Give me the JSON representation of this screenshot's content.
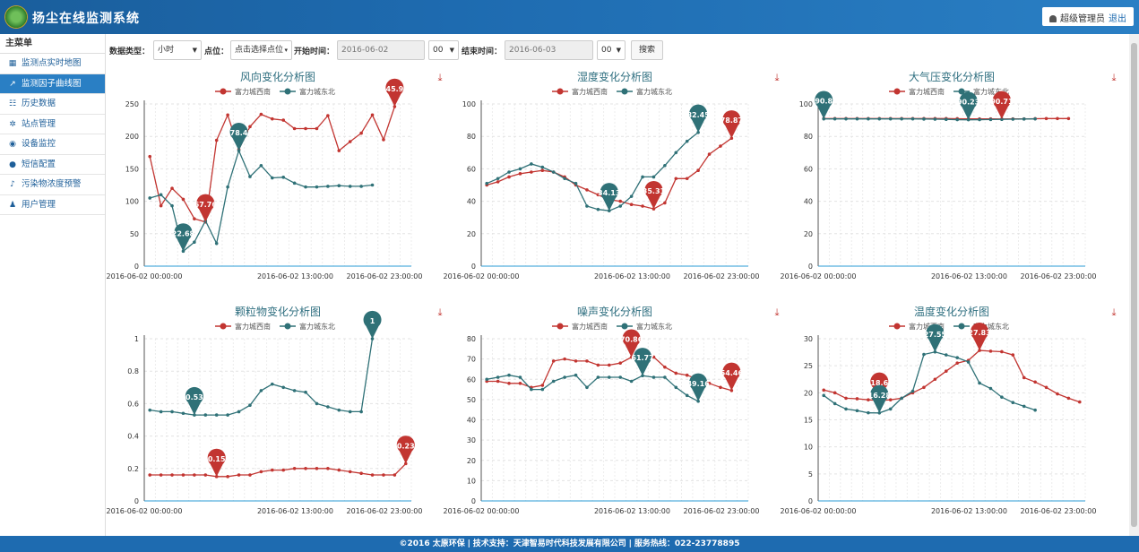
{
  "app": {
    "title": "扬尘在线监测系统"
  },
  "user": {
    "name": "超级管理员",
    "logout": "退出"
  },
  "sidebar": {
    "header": "主菜单",
    "items": [
      {
        "label": "监测点实时地图",
        "icon": "map-icon"
      },
      {
        "label": "监测因子曲线图",
        "icon": "line-chart-icon"
      },
      {
        "label": "历史数据",
        "icon": "table-icon"
      },
      {
        "label": "站点管理",
        "icon": "gear-icon"
      },
      {
        "label": "设备监控",
        "icon": "eye-icon"
      },
      {
        "label": "短信配置",
        "icon": "message-icon"
      },
      {
        "label": "污染物浓度预警",
        "icon": "bell-icon"
      },
      {
        "label": "用户管理",
        "icon": "user-icon"
      }
    ]
  },
  "toolbar": {
    "type_label": "数据类型：",
    "type_value": "小时",
    "point_label": "点位：",
    "point_value": "点击选择点位",
    "start_label": "开始时间：",
    "start_date": "2016-06-02",
    "start_hour": "00",
    "end_label": "结束时间：",
    "end_date": "2016-06-03",
    "end_hour": "00",
    "search": "搜索"
  },
  "footer": {
    "copyright": "©2016 太原环保",
    "sep1": "|",
    "support": "技术支持：",
    "company": "天津智易时代科技发展有限公司",
    "sep2": "|",
    "hotline": "服务热线：022-23778895"
  },
  "chart_data": [
    {
      "type": "line",
      "title": "风向变化分析图",
      "ylim": [
        0,
        250
      ],
      "yticks": [
        0,
        50,
        100,
        150,
        200,
        250
      ],
      "xticks": [
        "2016-06-02 00:00:00",
        "2016-06-02 13:00:00",
        "2016-06-02 23:00:00"
      ],
      "series": [
        {
          "name": "富力城西南",
          "color": "#c23531",
          "values": [
            169,
            93,
            120,
            103,
            73,
            68,
            194,
            233,
            180,
            215,
            234,
            227,
            225,
            212,
            212,
            212,
            232,
            178,
            192,
            205,
            233,
            195,
            246
          ],
          "markers": [
            {
              "index": 5,
              "label": "67.76"
            },
            {
              "index": 22,
              "label": "245.97"
            }
          ]
        },
        {
          "name": "富力城东北",
          "color": "#2f7177",
          "values": [
            105,
            110,
            93,
            23,
            37,
            70,
            35,
            122,
            178,
            138,
            155,
            136,
            137,
            128,
            122,
            122,
            123,
            124,
            123,
            123,
            125
          ],
          "markers": [
            {
              "index": 3,
              "label": "22.68"
            },
            {
              "index": 8,
              "label": "178.42"
            }
          ]
        }
      ]
    },
    {
      "type": "line",
      "title": "湿度变化分析图",
      "ylim": [
        0,
        100
      ],
      "yticks": [
        0,
        20,
        40,
        60,
        80,
        100
      ],
      "xticks": [
        "2016-06-02 00:00:00",
        "2016-06-02 13:00:00",
        "2016-06-02 23:00:00"
      ],
      "series": [
        {
          "name": "富力城西南",
          "color": "#c23531",
          "values": [
            50,
            52,
            55,
            57,
            58,
            59,
            58,
            55,
            50,
            47,
            44,
            41,
            40,
            38,
            37,
            35.3,
            39,
            54,
            54,
            59,
            69,
            74,
            78.87
          ],
          "markers": [
            {
              "index": 15,
              "label": "35.31"
            },
            {
              "index": 22,
              "label": "78.87"
            }
          ]
        },
        {
          "name": "富力城东北",
          "color": "#2f7177",
          "values": [
            51,
            54,
            58,
            60,
            63,
            61,
            58,
            54,
            51,
            37,
            35,
            34.13,
            37,
            43,
            55,
            55,
            62,
            70,
            77,
            82.45
          ],
          "markers": [
            {
              "index": 11,
              "label": "34.13"
            },
            {
              "index": 19,
              "label": "82.45"
            }
          ]
        }
      ]
    },
    {
      "type": "line",
      "title": "大气压变化分析图",
      "ylim": [
        0,
        100
      ],
      "yticks": [
        0,
        20,
        40,
        60,
        80,
        100
      ],
      "xticks": [
        "2016-06-02 00:00:00",
        "2016-06-02 13:00:00",
        "2016-06-02 23:00:00"
      ],
      "series": [
        {
          "name": "富力城西南",
          "color": "#c23531",
          "values": [
            91,
            91,
            91,
            91,
            91,
            91,
            91,
            91,
            91,
            91,
            91,
            91,
            90.9,
            90.8,
            90.8,
            90.8,
            90.71,
            90.8,
            90.8,
            90.9,
            91,
            91,
            91
          ],
          "markers": [
            {
              "index": 16,
              "label": "90.71"
            }
          ]
        },
        {
          "name": "富力城东北",
          "color": "#2f7177",
          "values": [
            90.8,
            90.8,
            90.8,
            90.8,
            90.8,
            90.8,
            90.8,
            90.8,
            90.8,
            90.7,
            90.6,
            90.5,
            90.3,
            90.23,
            90.3,
            90.4,
            90.5,
            90.6,
            90.7,
            90.8
          ],
          "markers": [
            {
              "index": 0,
              "label": "90.8"
            },
            {
              "index": 13,
              "label": "90.23"
            }
          ]
        }
      ]
    },
    {
      "type": "line",
      "title": "颗粒物变化分析图",
      "ylim": [
        0,
        1
      ],
      "yticks": [
        0,
        0.2,
        0.4,
        0.6,
        0.8,
        1
      ],
      "xticks": [
        "2016-06-02 00:00:00",
        "2016-06-02 13:00:00",
        "2016-06-02 23:00:00"
      ],
      "series": [
        {
          "name": "富力城西南",
          "color": "#c23531",
          "values": [
            0.16,
            0.16,
            0.16,
            0.16,
            0.16,
            0.16,
            0.15,
            0.15,
            0.16,
            0.16,
            0.18,
            0.19,
            0.19,
            0.2,
            0.2,
            0.2,
            0.2,
            0.19,
            0.18,
            0.17,
            0.16,
            0.16,
            0.16,
            0.23
          ],
          "markers": [
            {
              "index": 6,
              "label": "0.15"
            },
            {
              "index": 23,
              "label": "0.23"
            }
          ]
        },
        {
          "name": "富力城东北",
          "color": "#2f7177",
          "values": [
            0.56,
            0.55,
            0.55,
            0.54,
            0.53,
            0.53,
            0.53,
            0.53,
            0.55,
            0.59,
            0.68,
            0.72,
            0.7,
            0.68,
            0.67,
            0.6,
            0.58,
            0.56,
            0.55,
            0.55,
            1
          ],
          "markers": [
            {
              "index": 4,
              "label": "0.53"
            },
            {
              "index": 20,
              "label": "1"
            }
          ]
        }
      ]
    },
    {
      "type": "line",
      "title": "噪声变化分析图",
      "ylim": [
        0,
        80
      ],
      "yticks": [
        0,
        10,
        20,
        30,
        40,
        50,
        60,
        70,
        80
      ],
      "xticks": [
        "2016-06-02 00:00:00",
        "2016-06-02 13:00:00",
        "2016-06-02 23:00:00"
      ],
      "series": [
        {
          "name": "富力城西南",
          "color": "#c23531",
          "values": [
            59,
            59,
            58,
            58,
            56,
            57,
            69,
            70,
            69,
            69,
            67,
            67,
            68,
            70.86,
            71,
            71,
            66,
            63,
            62,
            60,
            58,
            56,
            54.46
          ],
          "markers": [
            {
              "index": 13,
              "label": "70.86"
            },
            {
              "index": 22,
              "label": "54.46"
            }
          ]
        },
        {
          "name": "富力城东北",
          "color": "#2f7177",
          "values": [
            60,
            61,
            62,
            61,
            55,
            55,
            59,
            61,
            62,
            56,
            61,
            61,
            61,
            59,
            61.77,
            61,
            61,
            56,
            52,
            49.16
          ],
          "markers": [
            {
              "index": 14,
              "label": "61.77"
            },
            {
              "index": 19,
              "label": "49.16"
            }
          ]
        }
      ]
    },
    {
      "type": "line",
      "title": "温度变化分析图",
      "ylim": [
        0,
        30
      ],
      "yticks": [
        0,
        5,
        10,
        15,
        20,
        25,
        30
      ],
      "xticks": [
        "2016-06-02 00:00:00",
        "2016-06-02 13:00:00",
        "2016-06-02 23:00:00"
      ],
      "series": [
        {
          "name": "富力城西南",
          "color": "#c23531",
          "values": [
            20.5,
            20,
            19,
            18.9,
            18.7,
            18.6,
            18.7,
            19,
            20,
            21,
            22.5,
            24,
            25.5,
            26,
            27.83,
            27.7,
            27.6,
            27,
            22.8,
            22,
            21,
            19.8,
            19,
            18.3
          ],
          "markers": [
            {
              "index": 5,
              "label": "18.6"
            },
            {
              "index": 14,
              "label": "27.83"
            }
          ]
        },
        {
          "name": "富力城东北",
          "color": "#2f7177",
          "values": [
            19.5,
            18,
            17,
            16.7,
            16.3,
            16.28,
            17,
            19,
            20.3,
            27.1,
            27.55,
            27,
            26.5,
            25.7,
            21.8,
            20.8,
            19.2,
            18.2,
            17.5,
            16.8
          ],
          "markers": [
            {
              "index": 5,
              "label": "16.28"
            },
            {
              "index": 10,
              "label": "27.55"
            }
          ]
        }
      ]
    }
  ]
}
